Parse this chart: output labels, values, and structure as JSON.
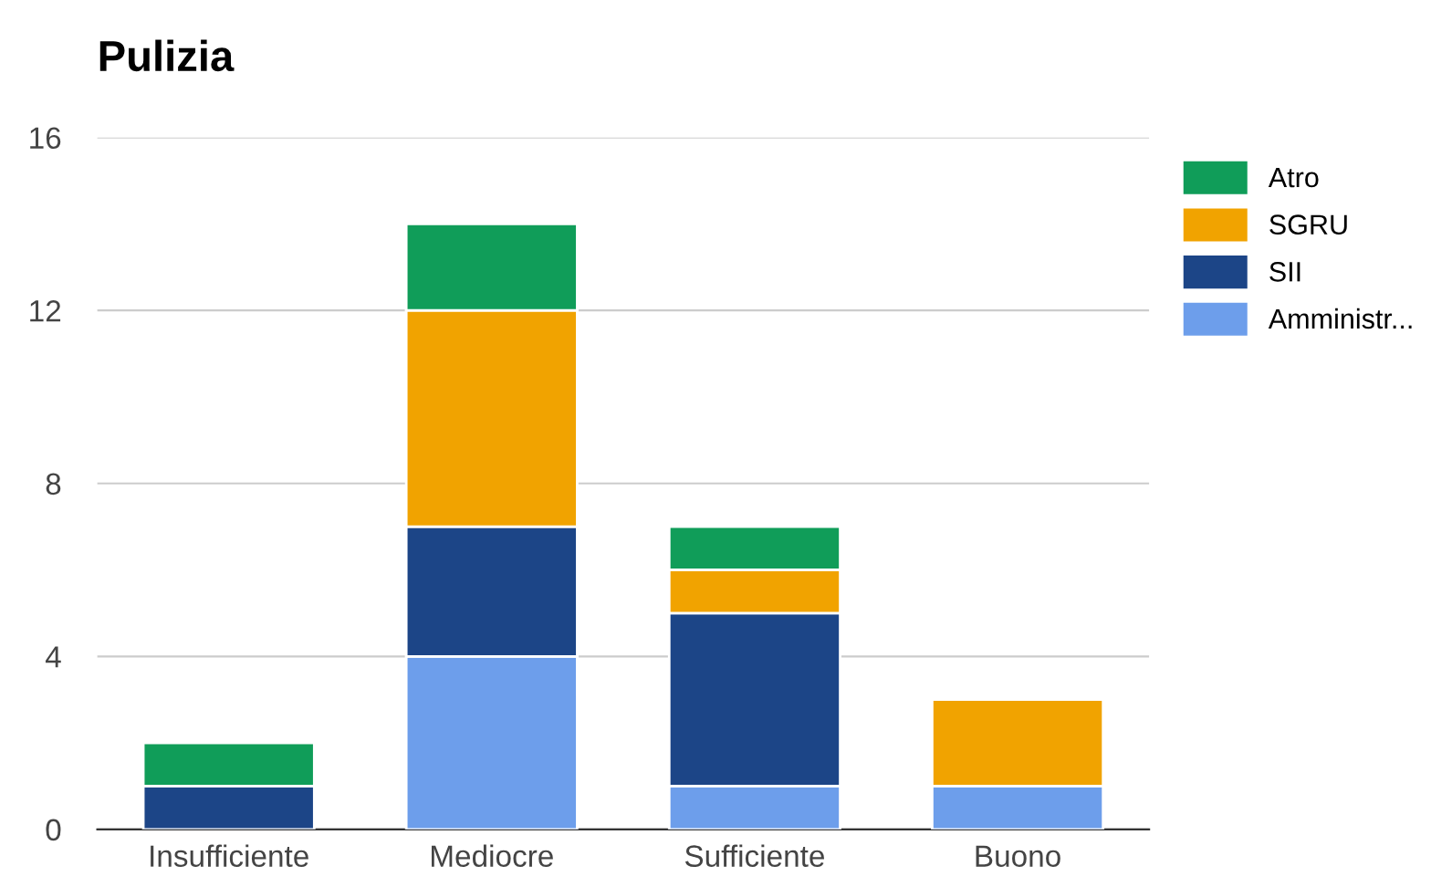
{
  "chart_data": {
    "type": "bar",
    "title": "Pulizia",
    "stacked": true,
    "categories": [
      "Insufficiente",
      "Mediocre",
      "Sufficiente",
      "Buono"
    ],
    "series": [
      {
        "name": "Amministr...",
        "color": "#6d9eeb",
        "values": [
          0,
          4,
          1,
          1
        ]
      },
      {
        "name": "SII",
        "color": "#1c4587",
        "values": [
          1,
          3,
          4,
          0
        ]
      },
      {
        "name": "SGRU",
        "color": "#f1a300",
        "values": [
          0,
          5,
          1,
          2
        ]
      },
      {
        "name": "Atro",
        "color": "#109d59",
        "values": [
          1,
          2,
          1,
          0
        ]
      }
    ],
    "ylim": [
      0,
      16
    ],
    "yticks": [
      0,
      4,
      8,
      12,
      16
    ],
    "grid": "y",
    "legend": "top right"
  }
}
